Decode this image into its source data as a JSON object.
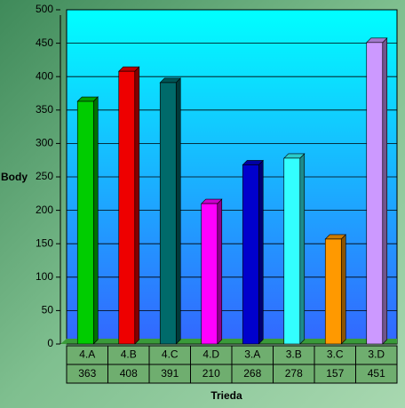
{
  "chart_data": {
    "type": "bar",
    "categories": [
      "4.A",
      "4.B",
      "4.C",
      "4.D",
      "3.A",
      "3.B",
      "3.C",
      "3.D"
    ],
    "values": [
      363,
      408,
      391,
      210,
      268,
      278,
      157,
      451
    ],
    "colors": [
      "#00cc00",
      "#ee0000",
      "#006a6a",
      "#ff00ff",
      "#0000cc",
      "#33ffff",
      "#ff9900",
      "#cc99ff"
    ],
    "ylabel": "Body",
    "xlabel": "Trieda",
    "ylim": [
      0,
      500
    ],
    "yticks": [
      0,
      50,
      100,
      150,
      200,
      250,
      300,
      350,
      400,
      450,
      500
    ],
    "grid": true
  }
}
